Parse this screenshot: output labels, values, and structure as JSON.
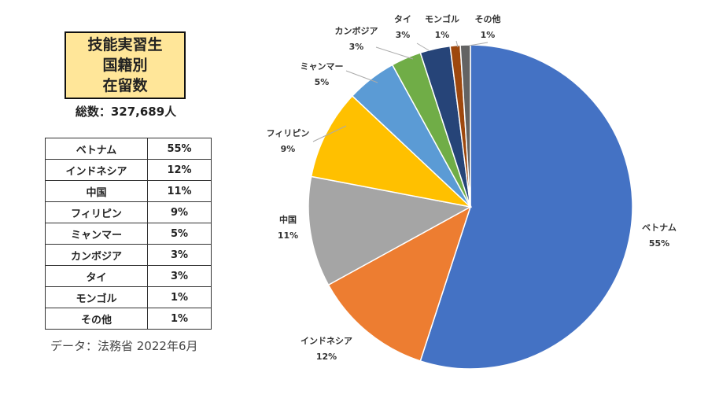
{
  "title_lines": [
    "技能実習生",
    "国籍別",
    "在留数"
  ],
  "total": "総数：327,689人",
  "source": "データ：法務省 2022年6月",
  "chart_data": {
    "type": "pie",
    "title": "技能実習生 国籍別 在留数",
    "categories": [
      "ベトナム",
      "インドネシア",
      "中国",
      "フィリピン",
      "ミャンマー",
      "カンボジア",
      "タイ",
      "モンゴル",
      "その他"
    ],
    "values": [
      55,
      12,
      11,
      9,
      5,
      3,
      3,
      1,
      1
    ],
    "labels": [
      "55%",
      "12%",
      "11%",
      "9%",
      "5%",
      "3%",
      "3%",
      "1%",
      "1%"
    ],
    "colors": [
      "#4472C4",
      "#ED7D31",
      "#A5A5A5",
      "#FFC000",
      "#5B9BD5",
      "#70AD47",
      "#264478",
      "#9E480E",
      "#636363"
    ],
    "start": "top",
    "direction": "clockwise"
  }
}
